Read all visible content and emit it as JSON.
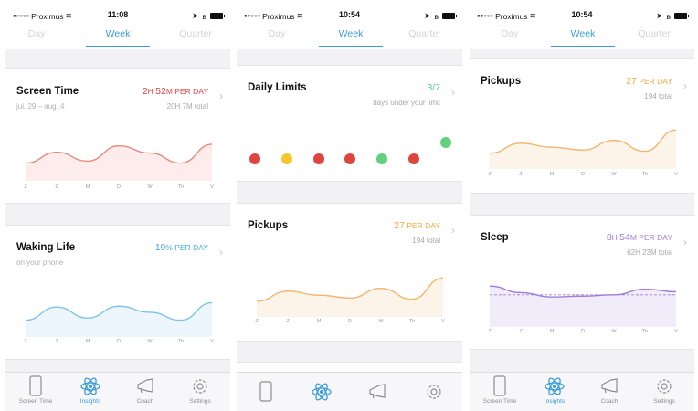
{
  "phones": [
    {
      "status": {
        "carrier": "Proximus",
        "time": "11:08"
      },
      "tabs": [
        "Day",
        "Week",
        "Quarter"
      ],
      "cards": [
        {
          "title": "Screen Time",
          "value_big": "2",
          "value_unit1": "H ",
          "value_big2": "52",
          "value_unit2": "M PER DAY",
          "subtitle": "jul. 29 – aug. 4",
          "total": "20H 7M total",
          "chart_color": "#e8877f",
          "values": [
            0.35,
            0.62,
            0.4,
            0.78,
            0.6,
            0.35,
            0.82
          ]
        },
        {
          "title": "Waking Life",
          "value_big": "19",
          "value_unit1": "% PER DAY",
          "subtitle": "on your phone",
          "chart_color": "#7ec3ea",
          "values": [
            0.3,
            0.6,
            0.35,
            0.62,
            0.48,
            0.3,
            0.7
          ]
        }
      ],
      "days": [
        "Z",
        "Z",
        "M",
        "D",
        "W",
        "Th",
        "V"
      ],
      "tabbar": [
        "Screen Time",
        "Insights",
        "Coach",
        "Settings"
      ]
    },
    {
      "status": {
        "carrier": "Proximus",
        "time": "10:54"
      },
      "tabs": [
        "Day",
        "Week",
        "Quarter"
      ],
      "limits": {
        "title": "Daily Limits",
        "value": "3/7",
        "subtitle": "days under your limit",
        "dot_colors": [
          "#e0443e",
          "#f6c52b",
          "#e0443e",
          "#e0443e",
          "#62d17f",
          "#e0443e",
          "#62d17f"
        ]
      },
      "pickups": {
        "title": "Pickups",
        "value_big": "27",
        "value_unit": " PER DAY",
        "total": "194 total",
        "chart_color": "#f2b46c",
        "values": [
          0.3,
          0.55,
          0.45,
          0.38,
          0.62,
          0.35,
          0.88
        ]
      },
      "days": [
        "Z",
        "Z",
        "M",
        "D",
        "W",
        "Th",
        "V"
      ]
    },
    {
      "status": {
        "carrier": "Proximus",
        "time": "10:54"
      },
      "tabs": [
        "Day",
        "Week",
        "Quarter"
      ],
      "pickups": {
        "title": "Pickups",
        "value_big": "27",
        "value_unit": " PER DAY",
        "total": "194 total",
        "chart_color": "#f2b46c",
        "values": [
          0.3,
          0.55,
          0.45,
          0.38,
          0.62,
          0.35,
          0.88
        ]
      },
      "sleep": {
        "title": "Sleep",
        "value_big": "8",
        "value_unit1": "H ",
        "value_big2": "54",
        "value_unit2": "M PER DAY",
        "total": "62H 23M total",
        "chart_color": "#a07ed6",
        "values": [
          0.85,
          0.7,
          0.6,
          0.62,
          0.65,
          0.78,
          0.72
        ]
      },
      "days": [
        "Z",
        "Z",
        "M",
        "D",
        "W",
        "Th",
        "V"
      ],
      "tabbar": [
        "Screen Time",
        "Insights",
        "Coach",
        "Settings"
      ]
    }
  ]
}
